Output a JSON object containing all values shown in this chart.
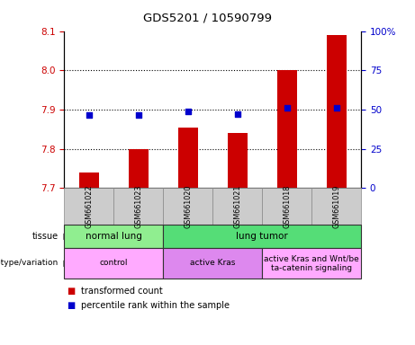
{
  "title": "GDS5201 / 10590799",
  "samples": [
    "GSM661022",
    "GSM661023",
    "GSM661020",
    "GSM661021",
    "GSM661018",
    "GSM661019"
  ],
  "bar_values": [
    7.74,
    7.8,
    7.855,
    7.84,
    8.0,
    8.09
  ],
  "bar_baseline": 7.7,
  "bar_color": "#cc0000",
  "dot_values": [
    7.885,
    7.885,
    7.895,
    7.888,
    7.905,
    7.905
  ],
  "dot_color": "#0000cc",
  "ylim_left": [
    7.7,
    8.1
  ],
  "ylim_right": [
    0,
    100
  ],
  "yticks_left": [
    7.7,
    7.8,
    7.9,
    8.0,
    8.1
  ],
  "yticks_right": [
    0,
    25,
    50,
    75,
    100
  ],
  "ytick_labels_right": [
    "0",
    "25",
    "50",
    "75",
    "100%"
  ],
  "tissue_labels": [
    {
      "text": "normal lung",
      "cols": [
        0,
        1
      ],
      "color": "#90EE90"
    },
    {
      "text": "lung tumor",
      "cols": [
        2,
        3,
        4,
        5
      ],
      "color": "#55dd77"
    }
  ],
  "genotype_labels": [
    {
      "text": "control",
      "cols": [
        0,
        1
      ],
      "color": "#ffaaff"
    },
    {
      "text": "active Kras",
      "cols": [
        2,
        3
      ],
      "color": "#dd88ee"
    },
    {
      "text": "active Kras and Wnt/be\nta-catenin signaling",
      "cols": [
        4,
        5
      ],
      "color": "#ffaaff"
    }
  ],
  "tissue_row_label": "tissue",
  "genotype_row_label": "genotype/variation",
  "legend_red": "transformed count",
  "legend_blue": "percentile rank within the sample",
  "left_tick_color": "#cc0000",
  "right_tick_color": "#0000cc",
  "background_color": "#ffffff",
  "plot_bg_color": "#ffffff"
}
